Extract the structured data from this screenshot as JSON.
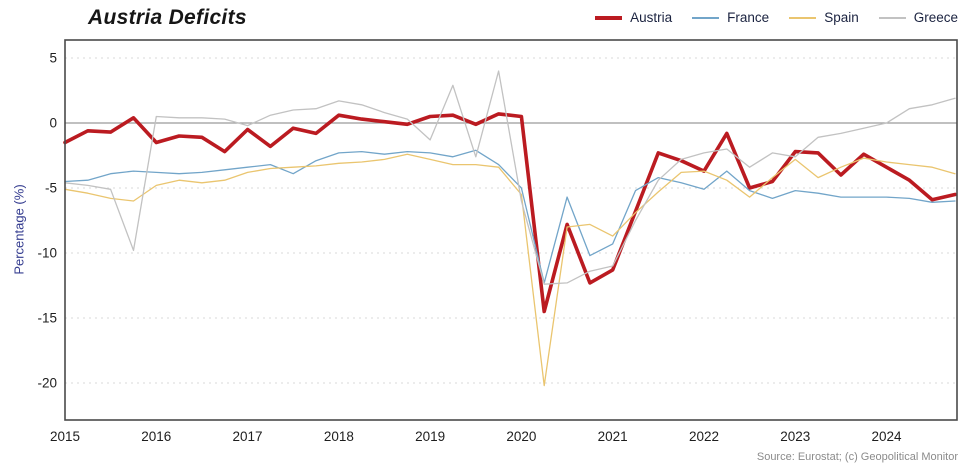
{
  "title": "Austria Deficits",
  "source": "Source: Eurostat; (c) Geopolitical Monitor",
  "chart_data": {
    "type": "line",
    "title": "Austria Deficits",
    "ylabel": "Percentage (%)",
    "xlabel": "",
    "x_frequency": "quarterly",
    "x_start": "2015Q1",
    "x_end": "2024Q4",
    "x_tick_labels": [
      "2015",
      "2016",
      "2017",
      "2018",
      "2019",
      "2020",
      "2021",
      "2022",
      "2023",
      "2024"
    ],
    "y_ticks": [
      5,
      0,
      -5,
      -10,
      -15,
      -20
    ],
    "ylim": [
      -22.5,
      6.4
    ],
    "grid": "horizontal dashed at ticks, solid line at 0",
    "legend_position": "top-right",
    "colors": {
      "austria": "#bb1b21",
      "france": "#72a5c9",
      "spain": "#eac56f",
      "greece": "#c2c2c2",
      "zero_line": "#9a9a9a",
      "gridline": "#d9d9d9",
      "plot_border": "#4a4a4a"
    },
    "series": [
      {
        "name": "Austria",
        "color": "#bb1b21",
        "width": 3.6,
        "values": [
          -1.5,
          -0.6,
          -0.7,
          0.4,
          -1.5,
          -1.0,
          -1.1,
          -2.2,
          -0.5,
          -1.8,
          -0.4,
          -0.8,
          0.6,
          0.3,
          0.1,
          -0.1,
          0.5,
          0.6,
          -0.1,
          0.7,
          0.5,
          -14.5,
          -7.8,
          -12.3,
          -11.3,
          -6.8,
          -2.3,
          -2.9,
          -3.7,
          -0.8,
          -5.0,
          -4.5,
          -2.2,
          -2.3,
          -4.0,
          -2.4,
          -3.4,
          -4.4,
          -5.9,
          -5.5
        ]
      },
      {
        "name": "France",
        "color": "#72a5c9",
        "width": 1.3,
        "values": [
          -4.5,
          -4.4,
          -3.9,
          -3.7,
          -3.8,
          -3.9,
          -3.8,
          -3.6,
          -3.4,
          -3.2,
          -3.9,
          -2.9,
          -2.3,
          -2.2,
          -2.4,
          -2.2,
          -2.3,
          -2.6,
          -2.1,
          -3.2,
          -5.0,
          -12.3,
          -5.7,
          -10.2,
          -9.3,
          -5.2,
          -4.2,
          -4.6,
          -5.1,
          -3.7,
          -5.2,
          -5.8,
          -5.2,
          -5.4,
          -5.7,
          -5.7,
          -5.7,
          -5.8,
          -6.1,
          -6.0
        ]
      },
      {
        "name": "Spain",
        "color": "#eac56f",
        "width": 1.3,
        "values": [
          -5.1,
          -5.4,
          -5.8,
          -6.0,
          -4.8,
          -4.4,
          -4.6,
          -4.4,
          -3.8,
          -3.5,
          -3.4,
          -3.3,
          -3.1,
          -3.0,
          -2.8,
          -2.4,
          -2.8,
          -3.2,
          -3.2,
          -3.4,
          -5.5,
          -20.2,
          -8.0,
          -7.8,
          -8.7,
          -6.9,
          -5.3,
          -3.8,
          -3.7,
          -4.4,
          -5.7,
          -4.2,
          -2.8,
          -4.2,
          -3.4,
          -2.7,
          -3.0,
          -3.2,
          -3.4,
          -3.9
        ]
      },
      {
        "name": "Greece",
        "color": "#c2c2c2",
        "width": 1.3,
        "values": [
          -4.6,
          -4.8,
          -5.1,
          -9.8,
          0.5,
          0.4,
          0.4,
          0.3,
          -0.2,
          0.6,
          1.0,
          1.1,
          1.7,
          1.4,
          0.8,
          0.3,
          -1.3,
          2.9,
          -2.6,
          4.0,
          -6.0,
          -12.4,
          -12.3,
          -11.4,
          -11.0,
          -7.5,
          -4.4,
          -2.8,
          -2.3,
          -2.0,
          -3.4,
          -2.3,
          -2.6,
          -1.1,
          -0.8,
          -0.4,
          0.0,
          1.1,
          1.4,
          1.9
        ]
      }
    ]
  }
}
